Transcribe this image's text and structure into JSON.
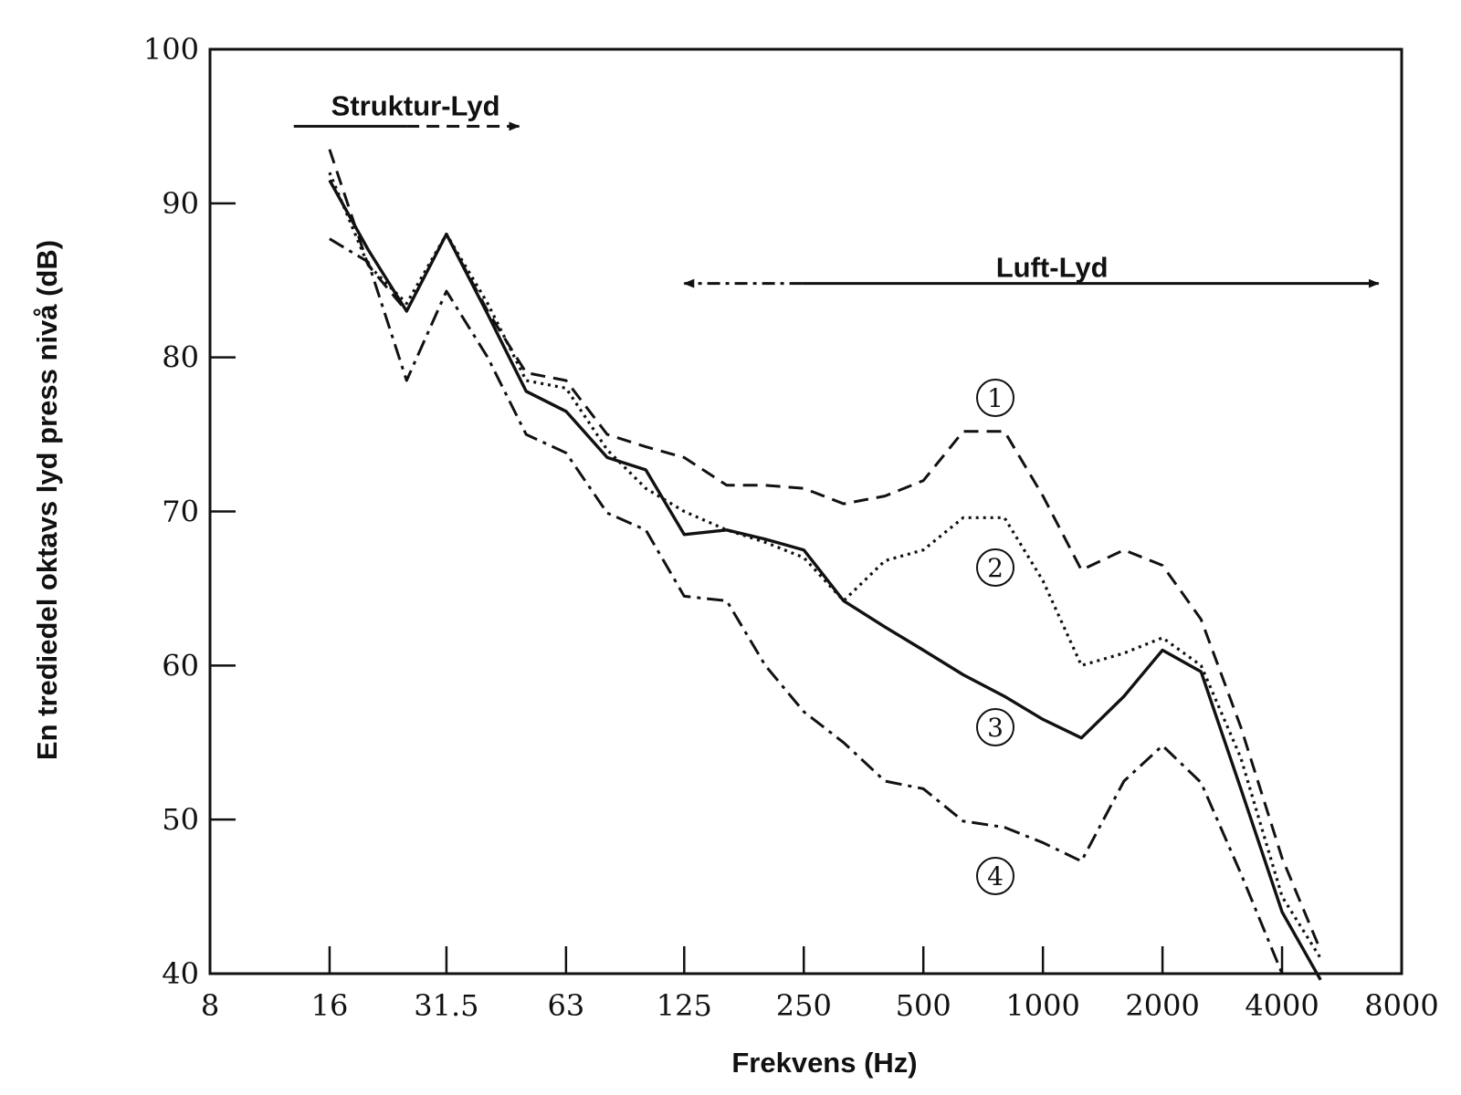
{
  "chart_data": {
    "type": "line",
    "title": "",
    "xlabel": "Frekvens (Hz)",
    "ylabel": "En trediedel oktavs lyd press nivå (dB)",
    "xscale": "log2",
    "xlim": [
      8,
      8000
    ],
    "ylim": [
      40,
      100
    ],
    "x_tick_labels": [
      "8",
      "16",
      "31.5",
      "63",
      "125",
      "250",
      "500",
      "1000",
      "2000",
      "4000",
      "8000"
    ],
    "x_tick_values": [
      8,
      16,
      31.5,
      63,
      125,
      250,
      500,
      1000,
      2000,
      4000,
      8000
    ],
    "y_ticks": [
      40,
      50,
      60,
      70,
      80,
      90,
      100
    ],
    "grid": false,
    "series": [
      {
        "name": "1",
        "marker": "①",
        "style": "long-dash",
        "color": "#111111",
        "x": [
          16,
          20,
          25,
          31.5,
          40,
          50,
          63,
          80,
          100,
          125,
          160,
          200,
          250,
          315,
          400,
          500,
          630,
          800,
          1000,
          1250,
          1600,
          2000,
          2500,
          3150,
          4000,
          5000
        ],
        "y": [
          93.5,
          86,
          83,
          88,
          83,
          79,
          78.5,
          75,
          74.2,
          73.5,
          71.7,
          71.7,
          71.5,
          70.5,
          71,
          72,
          75.2,
          75.2,
          71,
          66.2,
          67.5,
          66.5,
          63,
          56,
          47.5,
          41.5
        ]
      },
      {
        "name": "2",
        "marker": "②",
        "style": "dotted",
        "color": "#111111",
        "x": [
          16,
          20,
          25,
          31.5,
          40,
          50,
          63,
          80,
          100,
          125,
          160,
          200,
          250,
          315,
          400,
          500,
          630,
          800,
          1000,
          1250,
          1600,
          2000,
          2500,
          3150,
          4000,
          5000
        ],
        "y": [
          92,
          86,
          83.5,
          88,
          83.5,
          78.5,
          78,
          74,
          71.5,
          70,
          68.8,
          68,
          67,
          64.2,
          66.8,
          67.5,
          69.6,
          69.6,
          65.5,
          60,
          60.8,
          61.8,
          60,
          54,
          45,
          41
        ]
      },
      {
        "name": "3",
        "marker": "③",
        "style": "solid",
        "color": "#111111",
        "x": [
          16,
          20,
          25,
          31.5,
          40,
          50,
          63,
          80,
          100,
          125,
          160,
          200,
          250,
          315,
          400,
          500,
          630,
          800,
          1000,
          1250,
          1600,
          2000,
          2500,
          3150,
          4000,
          5000
        ],
        "y": [
          91.5,
          87,
          83,
          88,
          82.8,
          77.8,
          76.5,
          73.5,
          72.7,
          68.5,
          68.8,
          68.2,
          67.5,
          64.2,
          62.5,
          61,
          59.4,
          58,
          56.5,
          55.3,
          58,
          61,
          59.6,
          52,
          44,
          39.6
        ]
      },
      {
        "name": "4",
        "marker": "④",
        "style": "dash-dot",
        "color": "#111111",
        "x": [
          16,
          20,
          25,
          31.5,
          40,
          50,
          63,
          80,
          100,
          125,
          160,
          200,
          250,
          315,
          400,
          500,
          630,
          800,
          1000,
          1250,
          1600,
          2000,
          2500,
          3150,
          4000
        ],
        "y": [
          87.7,
          86.2,
          78.5,
          84.3,
          80,
          75,
          73.8,
          69.9,
          68.8,
          64.5,
          64.2,
          60,
          57,
          55,
          52.5,
          52,
          49.9,
          49.5,
          48.5,
          47.3,
          52.5,
          54.8,
          52.4,
          46.5,
          40
        ]
      }
    ],
    "annotations": [
      {
        "text": "Struktur-Lyd",
        "x_from": 13,
        "x_to": 48,
        "y_text": 96.3,
        "y_arrow": 95,
        "direction": "right",
        "style": "solid-then-dashed"
      },
      {
        "text": "Luft-Lyd",
        "x_from": 125,
        "x_to": 7000,
        "y_text": 85.8,
        "y_arrow": 84.8,
        "direction": "both",
        "style": "dashdot-then-solid"
      }
    ]
  }
}
